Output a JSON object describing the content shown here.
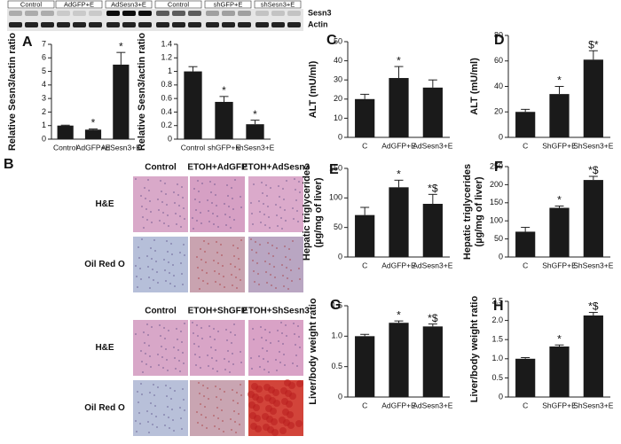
{
  "blot": {
    "lanes": [
      "Control",
      "AdGFP+E",
      "AdSesn3+E",
      "Control",
      "shGFP+E",
      "shSesn3+E"
    ],
    "bands": [
      "Sesn3",
      "Actin"
    ]
  },
  "histology": {
    "panel": "B",
    "groups": [
      {
        "columns": [
          "Control",
          "ETOH+AdGFP",
          "ETOH+AdSesn3"
        ],
        "rows": [
          "H&E",
          "Oil Red O"
        ]
      },
      {
        "columns": [
          "Control",
          "ETOH+ShGFP",
          "ETOH+ShSesn3"
        ],
        "rows": [
          "H&E",
          "Oil Red O"
        ]
      }
    ]
  },
  "chart_data": [
    {
      "type": "bar",
      "panel": "A",
      "ylabel": "Relative Sesn3/actin ratio",
      "categories": [
        "Control",
        "AdGFP+E",
        "AdSesn3+E"
      ],
      "values": [
        1.0,
        0.7,
        5.5
      ],
      "errors": [
        0.03,
        0.05,
        0.9
      ],
      "annotations": [
        null,
        "*",
        "*"
      ],
      "ylim": [
        0,
        7
      ],
      "yticks": [
        0,
        1,
        2,
        3,
        4,
        5,
        6,
        7
      ],
      "color": "#1a1a1a"
    },
    {
      "type": "bar",
      "ylabel": "Relative Sesn3/actin ratio",
      "categories": [
        "Control",
        "shGFP+E",
        "shSesn3+E"
      ],
      "values": [
        1.0,
        0.55,
        0.22
      ],
      "errors": [
        0.07,
        0.08,
        0.06
      ],
      "annotations": [
        null,
        "*",
        "*"
      ],
      "ylim": [
        0,
        1.4
      ],
      "yticks": [
        0,
        0.2,
        0.4,
        0.6,
        0.8,
        1,
        1.2,
        1.4
      ],
      "color": "#1a1a1a"
    },
    {
      "type": "bar",
      "panel": "C",
      "ylabel": "ALT (mU/ml)",
      "categories": [
        "C",
        "AdGFP+E",
        "AdSesn3+E"
      ],
      "values": [
        20,
        31,
        26
      ],
      "errors": [
        2.5,
        6,
        4
      ],
      "annotations": [
        null,
        "*",
        null
      ],
      "ylim": [
        0,
        50
      ],
      "yticks": [
        0,
        10,
        20,
        30,
        40,
        50
      ],
      "color": "#1a1a1a"
    },
    {
      "type": "bar",
      "panel": "D",
      "ylabel": "ALT (mU/ml)",
      "categories": [
        "C",
        "ShGFP+E",
        "ShSesn3+E"
      ],
      "values": [
        20,
        34,
        61
      ],
      "errors": [
        2,
        6,
        7
      ],
      "annotations": [
        null,
        "*",
        "$*"
      ],
      "ylim": [
        0,
        80
      ],
      "yticks": [
        0,
        20,
        40,
        60,
        80
      ],
      "color": "#1a1a1a"
    },
    {
      "type": "bar",
      "panel": "E",
      "ylabel": [
        "Hepatic triglycerides",
        "(µg/mg of liver)"
      ],
      "categories": [
        "C",
        "AdGFP+E",
        "AdSesn3+E"
      ],
      "values": [
        71,
        118,
        90
      ],
      "errors": [
        13,
        12,
        16
      ],
      "annotations": [
        null,
        "*",
        "*$"
      ],
      "ylim": [
        0,
        150
      ],
      "yticks": [
        0,
        50,
        100,
        150
      ],
      "color": "#1a1a1a"
    },
    {
      "type": "bar",
      "panel": "F",
      "ylabel": [
        "Hepatic triglycerides",
        "(µg/mg of liver)"
      ],
      "categories": [
        "C",
        "ShGFP+E",
        "ShSesn3+E"
      ],
      "values": [
        70,
        136,
        213
      ],
      "errors": [
        12,
        5,
        10
      ],
      "annotations": [
        null,
        "*",
        "*$"
      ],
      "ylim": [
        0,
        250
      ],
      "yticks": [
        0,
        50,
        100,
        150,
        200,
        250
      ],
      "color": "#1a1a1a"
    },
    {
      "type": "bar",
      "panel": "G",
      "ylabel": "Liver/body weight ratio",
      "categories": [
        "C",
        "AdGFP+E",
        "AdSesn3+E"
      ],
      "values": [
        1.0,
        1.22,
        1.16
      ],
      "errors": [
        0.03,
        0.03,
        0.04
      ],
      "annotations": [
        null,
        "*",
        "*$"
      ],
      "ylim": [
        0,
        1.5
      ],
      "yticks": [
        0,
        0.5,
        {
          "value": 1,
          "label": "1.0"
        },
        1.5
      ],
      "color": "#1a1a1a"
    },
    {
      "type": "bar",
      "panel": "H",
      "ylabel": "Liver/body weight ratio",
      "categories": [
        "C",
        "ShGFP+E",
        "ShSesn3+E"
      ],
      "values": [
        1.0,
        1.32,
        2.13
      ],
      "errors": [
        0.03,
        0.04,
        0.08
      ],
      "annotations": [
        null,
        "*",
        "*$"
      ],
      "ylim": [
        0,
        2.5
      ],
      "yticks": [
        0,
        0.5,
        {
          "value": 1,
          "label": "1.0"
        },
        1.5,
        {
          "value": 2,
          "label": "2.0"
        },
        2.5
      ],
      "color": "#1a1a1a"
    }
  ]
}
